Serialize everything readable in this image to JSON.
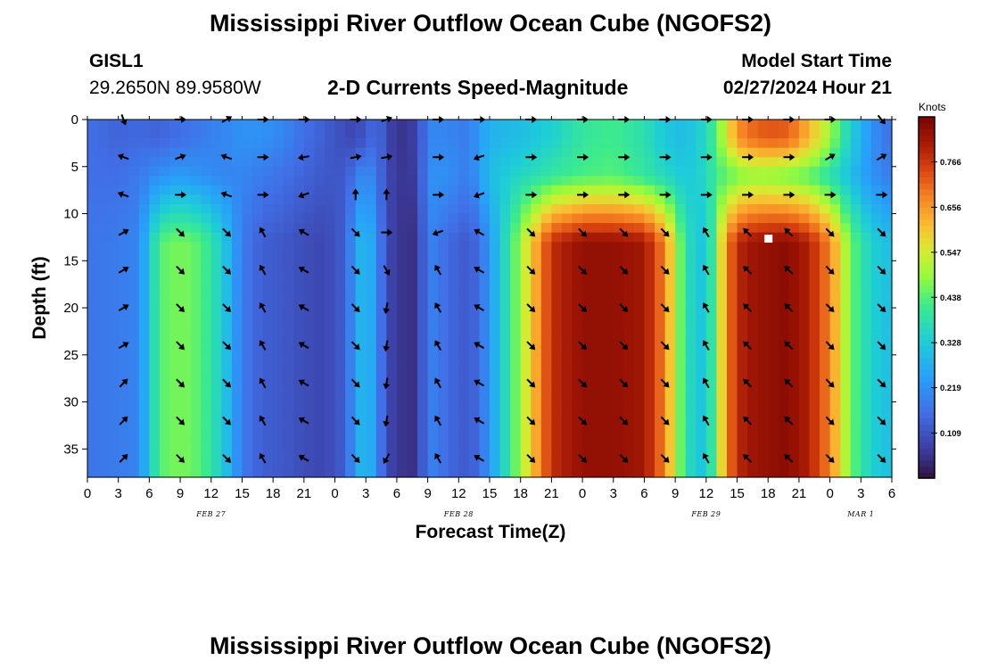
{
  "page_title": "Mississippi River Outflow Ocean Cube (NGOFS2)",
  "station": {
    "id": "GISL1",
    "coords": "29.2650N  89.9580W"
  },
  "model_start": {
    "label": "Model Start Time",
    "value": "02/27/2024 Hour 21"
  },
  "chart_data": {
    "type": "heatmap",
    "title": "2-D Currents Speed-Magnitude",
    "xlabel": "Forecast Time(Z)",
    "ylabel": "Depth (ft)",
    "x_unit": "forecast hour (offset from 0Z Feb 27)",
    "xlim": [
      0,
      78
    ],
    "ylim": [
      38,
      0
    ],
    "x_ticks": [
      0,
      3,
      6,
      9,
      12,
      15,
      18,
      21,
      24,
      27,
      30,
      33,
      36,
      39,
      42,
      45,
      48,
      51,
      54,
      57,
      60,
      63,
      66,
      69,
      72,
      75,
      78
    ],
    "x_tick_labels": [
      "0",
      "3",
      "6",
      "9",
      "12",
      "15",
      "18",
      "21",
      "0",
      "3",
      "6",
      "9",
      "12",
      "15",
      "18",
      "21",
      "0",
      "3",
      "6",
      "9",
      "12",
      "15",
      "18",
      "21",
      "0",
      "3",
      "6"
    ],
    "y_ticks": [
      0,
      5,
      10,
      15,
      20,
      25,
      30,
      35
    ],
    "y_tick_labels": [
      "0",
      "5",
      "10",
      "15",
      "20",
      "25",
      "30",
      "35"
    ],
    "date_labels": [
      {
        "label": "FEB 27",
        "hour": 12
      },
      {
        "label": "FEB 28",
        "hour": 36
      },
      {
        "label": "FEB 29",
        "hour": 60
      },
      {
        "label": "MAR 1",
        "hour": 75
      }
    ],
    "colorbar": {
      "title": "Knots",
      "min": 0.0,
      "max": 0.875,
      "ticks": [
        0.109,
        0.219,
        0.328,
        0.438,
        0.547,
        0.656,
        0.766
      ],
      "tick_labels": [
        "0.109",
        "0.219",
        "0.328",
        "0.438",
        "0.547",
        "0.656",
        "0.766"
      ]
    },
    "speed_profile": {
      "hours": [
        0,
        3,
        5,
        7,
        9,
        11,
        13,
        15,
        17,
        19,
        21,
        23,
        25,
        26,
        27,
        28,
        29,
        30,
        32,
        33,
        35,
        37,
        38,
        39,
        42,
        45,
        48,
        51,
        54,
        56,
        58,
        60,
        61,
        62,
        63,
        64,
        66,
        68,
        70,
        72,
        74,
        76,
        78
      ],
      "deep_speed": [
        0.17,
        0.18,
        0.2,
        0.44,
        0.47,
        0.44,
        0.34,
        0.18,
        0.13,
        0.12,
        0.1,
        0.09,
        0.13,
        0.25,
        0.31,
        0.22,
        0.1,
        0.06,
        0.05,
        0.2,
        0.15,
        0.12,
        0.16,
        0.23,
        0.5,
        0.78,
        0.84,
        0.84,
        0.82,
        0.68,
        0.38,
        0.3,
        0.48,
        0.68,
        0.78,
        0.82,
        0.84,
        0.85,
        0.8,
        0.68,
        0.46,
        0.34,
        0.3
      ],
      "surface_speed": [
        0.16,
        0.14,
        0.15,
        0.14,
        0.16,
        0.18,
        0.2,
        0.22,
        0.22,
        0.2,
        0.16,
        0.13,
        0.1,
        0.09,
        0.12,
        0.16,
        0.1,
        0.05,
        0.08,
        0.2,
        0.2,
        0.18,
        0.24,
        0.28,
        0.3,
        0.34,
        0.4,
        0.42,
        0.38,
        0.32,
        0.3,
        0.36,
        0.44,
        0.56,
        0.66,
        0.7,
        0.73,
        0.72,
        0.62,
        0.5,
        0.34,
        0.22,
        0.16
      ],
      "mid_gap_speed": [
        0.16,
        0.16,
        0.18,
        0.22,
        0.24,
        0.22,
        0.2,
        0.2,
        0.18,
        0.16,
        0.14,
        0.12,
        0.12,
        0.18,
        0.22,
        0.18,
        0.1,
        0.06,
        0.07,
        0.22,
        0.22,
        0.18,
        0.24,
        0.3,
        0.36,
        0.4,
        0.43,
        0.44,
        0.4,
        0.36,
        0.32,
        0.36,
        0.42,
        0.44,
        0.46,
        0.48,
        0.48,
        0.46,
        0.44,
        0.38,
        0.3,
        0.22,
        0.18
      ]
    },
    "arrow_columns": [
      {
        "hour": 3.5,
        "angles": [
          70,
          -160,
          -160,
          -30,
          -30,
          -30,
          -30,
          -45,
          -45,
          -45
        ]
      },
      {
        "hour": 9,
        "angles": [
          0,
          -20,
          0,
          45,
          45,
          45,
          45,
          45,
          45,
          45
        ]
      },
      {
        "hour": 13.5,
        "angles": [
          -30,
          -160,
          -160,
          45,
          45,
          45,
          45,
          45,
          45,
          45
        ]
      },
      {
        "hour": 17,
        "angles": [
          0,
          0,
          0,
          -120,
          -120,
          -120,
          -120,
          -120,
          -120,
          -120
        ]
      },
      {
        "hour": 21,
        "angles": [
          0,
          170,
          160,
          -150,
          -150,
          -150,
          -150,
          -150,
          -150,
          -150
        ]
      },
      {
        "hour": 26,
        "angles": [
          0,
          -10,
          -90,
          45,
          45,
          45,
          45,
          45,
          45,
          45
        ]
      },
      {
        "hour": 29,
        "angles": [
          -20,
          -10,
          -90,
          0,
          60,
          100,
          100,
          100,
          100,
          120
        ]
      },
      {
        "hour": 34,
        "angles": [
          0,
          0,
          0,
          160,
          -120,
          -120,
          -120,
          -120,
          -120,
          -120
        ]
      },
      {
        "hour": 38,
        "angles": [
          0,
          160,
          160,
          -150,
          -150,
          -150,
          -150,
          -150,
          -150,
          -150
        ]
      },
      {
        "hour": 43,
        "angles": [
          0,
          0,
          0,
          45,
          45,
          45,
          45,
          45,
          45,
          45
        ]
      },
      {
        "hour": 48,
        "angles": [
          0,
          0,
          0,
          45,
          45,
          45,
          45,
          45,
          45,
          45
        ]
      },
      {
        "hour": 52,
        "angles": [
          0,
          0,
          0,
          45,
          45,
          45,
          45,
          45,
          45,
          45
        ]
      },
      {
        "hour": 56,
        "angles": [
          0,
          0,
          0,
          45,
          45,
          45,
          45,
          45,
          45,
          45
        ]
      },
      {
        "hour": 60,
        "angles": [
          0,
          0,
          0,
          -120,
          -120,
          -120,
          -120,
          -120,
          -120,
          -120
        ]
      },
      {
        "hour": 64,
        "angles": [
          0,
          0,
          0,
          -135,
          -135,
          -135,
          -135,
          -135,
          -135,
          -135
        ]
      },
      {
        "hour": 68,
        "angles": [
          0,
          0,
          0,
          -135,
          -135,
          -135,
          -135,
          -135,
          -135,
          -135
        ]
      },
      {
        "hour": 72,
        "angles": [
          0,
          -30,
          0,
          45,
          45,
          45,
          45,
          45,
          45,
          45
        ]
      },
      {
        "hour": 77,
        "angles": [
          50,
          -30,
          0,
          45,
          45,
          45,
          45,
          45,
          45,
          45
        ]
      }
    ],
    "arrow_depths": [
      0,
      4,
      8,
      12,
      16,
      20,
      24,
      28,
      32,
      36
    ]
  },
  "footer_title": "Mississippi River Outflow Ocean Cube (NGOFS2)"
}
